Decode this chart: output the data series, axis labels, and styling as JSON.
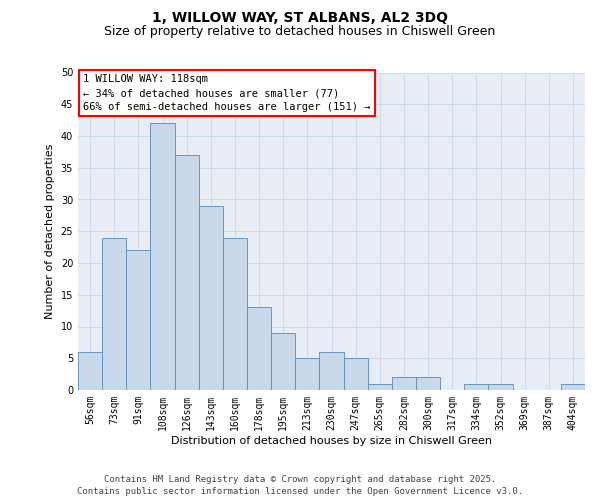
{
  "title": "1, WILLOW WAY, ST ALBANS, AL2 3DQ",
  "subtitle": "Size of property relative to detached houses in Chiswell Green",
  "xlabel": "Distribution of detached houses by size in Chiswell Green",
  "ylabel": "Number of detached properties",
  "categories": [
    "56sqm",
    "73sqm",
    "91sqm",
    "108sqm",
    "126sqm",
    "143sqm",
    "160sqm",
    "178sqm",
    "195sqm",
    "213sqm",
    "230sqm",
    "247sqm",
    "265sqm",
    "282sqm",
    "300sqm",
    "317sqm",
    "334sqm",
    "352sqm",
    "369sqm",
    "387sqm",
    "404sqm"
  ],
  "values": [
    6,
    24,
    22,
    42,
    37,
    29,
    24,
    13,
    9,
    5,
    6,
    5,
    1,
    2,
    2,
    0,
    1,
    1,
    0,
    0,
    1
  ],
  "bar_color": "#c9d9ec",
  "bar_edge_color": "#5b8ab5",
  "annotation_text": "1 WILLOW WAY: 118sqm\n← 34% of detached houses are smaller (77)\n66% of semi-detached houses are larger (151) →",
  "annotation_box_facecolor": "white",
  "annotation_box_edgecolor": "red",
  "ylim": [
    0,
    50
  ],
  "yticks": [
    0,
    5,
    10,
    15,
    20,
    25,
    30,
    35,
    40,
    45,
    50
  ],
  "grid_color": "#c8d4e8",
  "background_color": "#e8edf5",
  "footer_text": "Contains HM Land Registry data © Crown copyright and database right 2025.\nContains public sector information licensed under the Open Government Licence v3.0.",
  "title_fontsize": 10,
  "subtitle_fontsize": 9,
  "xlabel_fontsize": 8,
  "ylabel_fontsize": 8,
  "tick_fontsize": 7,
  "annotation_fontsize": 7.5,
  "footer_fontsize": 6.5
}
